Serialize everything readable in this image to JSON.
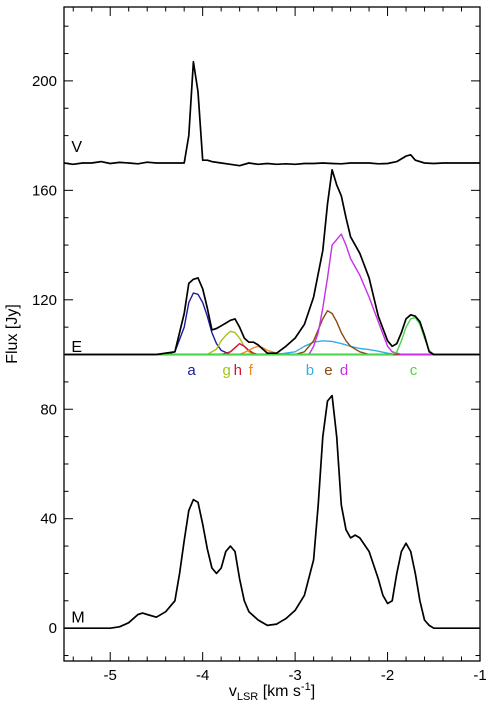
{
  "chart_data": {
    "type": "line",
    "xlabel_main": "v",
    "xlabel_sub": "LSR",
    "xlabel_units_pre": " [km s",
    "xlabel_units_sup": "-1",
    "xlabel_units_post": "]",
    "ylabel": "Flux [Jy]",
    "xlim": [
      -5.5,
      -1.0
    ],
    "ylim": [
      -12,
      227
    ],
    "x_ticks": [
      -5,
      -4,
      -3,
      -2,
      -1
    ],
    "x_tick_labels": [
      "-5",
      "-4",
      "-3",
      "-2",
      "-1"
    ],
    "y_ticks": [
      0,
      40,
      80,
      120,
      160,
      200
    ],
    "y_tick_labels": [
      "0",
      "40",
      "80",
      "120",
      "160",
      "200"
    ],
    "panels": [
      {
        "label": "V",
        "label_x": -5.42,
        "label_y": 174
      },
      {
        "label": "E",
        "label_x": -5.42,
        "label_y": 101
      },
      {
        "label": "M",
        "label_x": -5.42,
        "label_y": 2
      }
    ],
    "series": [
      {
        "color": "#000000",
        "x": [
          -5.5,
          -5.4,
          -5.3,
          -5.2,
          -5.1,
          -5.0,
          -4.9,
          -4.8,
          -4.7,
          -4.6,
          -4.5,
          -4.4,
          -4.3,
          -4.2,
          -4.15,
          -4.1,
          -4.05,
          -4.0,
          -3.95,
          -3.9,
          -3.8,
          -3.7,
          -3.6,
          -3.5,
          -3.4,
          -3.3,
          -3.2,
          -3.1,
          -3.0,
          -2.9,
          -2.8,
          -2.7,
          -2.6,
          -2.5,
          -2.4,
          -2.3,
          -2.2,
          -2.1,
          -2.0,
          -1.9,
          -1.8,
          -1.75,
          -1.7,
          -1.6,
          -1.5,
          -1.4,
          -1.3,
          -1.2,
          -1.1,
          -1.0
        ],
        "y": [
          170,
          169.5,
          170,
          170,
          170.5,
          169.8,
          170.2,
          170,
          169.7,
          170.3,
          170,
          170,
          170,
          170,
          180,
          207,
          196,
          171,
          171,
          170.5,
          170,
          169.5,
          169,
          170,
          169.5,
          169.8,
          169.5,
          169.7,
          169.5,
          169.8,
          169.8,
          170,
          169.8,
          169.7,
          170,
          170,
          170,
          169.7,
          169.8,
          170.5,
          172.5,
          173,
          171,
          170,
          169.8,
          170,
          170,
          170,
          170,
          170
        ]
      },
      {
        "color": "#000000",
        "x": [
          -5.5,
          -5.0,
          -4.5,
          -4.3,
          -4.2,
          -4.15,
          -4.1,
          -4.05,
          -4.0,
          -3.95,
          -3.9,
          -3.85,
          -3.8,
          -3.75,
          -3.7,
          -3.65,
          -3.6,
          -3.55,
          -3.5,
          -3.45,
          -3.4,
          -3.35,
          -3.3,
          -3.2,
          -3.1,
          -3.0,
          -2.9,
          -2.8,
          -2.7,
          -2.65,
          -2.6,
          -2.55,
          -2.5,
          -2.45,
          -2.4,
          -2.35,
          -2.3,
          -2.2,
          -2.1,
          -2.0,
          -1.95,
          -1.9,
          -1.85,
          -1.8,
          -1.75,
          -1.7,
          -1.65,
          -1.6,
          -1.55,
          -1.5,
          -1.4,
          -1.0
        ],
        "y": [
          100,
          100,
          100,
          101,
          115,
          126,
          127.5,
          128,
          124,
          117,
          109,
          109.5,
          110.5,
          111.5,
          112.5,
          113,
          110,
          106,
          104.5,
          104.5,
          103.5,
          102,
          100.5,
          100.5,
          103,
          106,
          111,
          121,
          138,
          155,
          167.5,
          162,
          158,
          150,
          143,
          140,
          137,
          128,
          114,
          105,
          103,
          104,
          108,
          113,
          114.5,
          114,
          112,
          107,
          101,
          100,
          100,
          100
        ]
      },
      {
        "color": "#1a1a9a",
        "x": [
          -5.5,
          -4.4,
          -4.3,
          -4.2,
          -4.15,
          -4.1,
          -4.05,
          -4.0,
          -3.95,
          -3.9,
          -3.85,
          -3.8,
          -3.7,
          -3.6,
          -1.0
        ],
        "y": [
          100,
          100,
          101,
          110,
          119,
          122.5,
          122,
          119,
          114,
          108,
          104,
          101.5,
          100,
          100,
          100
        ]
      },
      {
        "color": "#a6c318",
        "x": [
          -5.5,
          -3.95,
          -3.85,
          -3.8,
          -3.75,
          -3.7,
          -3.65,
          -3.6,
          -3.55,
          -3.5,
          -3.45,
          -1.0
        ],
        "y": [
          100,
          100,
          102,
          105,
          107,
          108.5,
          108,
          106,
          103,
          101,
          100,
          100
        ]
      },
      {
        "color": "#d6102f",
        "x": [
          -5.5,
          -3.8,
          -3.7,
          -3.65,
          -3.6,
          -3.55,
          -3.5,
          -3.45,
          -3.4,
          -1.0
        ],
        "y": [
          100,
          100,
          101,
          102.5,
          104,
          103,
          101.5,
          100.5,
          100,
          100
        ]
      },
      {
        "color": "#ee8a22",
        "x": [
          -5.5,
          -3.6,
          -3.5,
          -3.45,
          -3.4,
          -3.35,
          -3.3,
          -3.2,
          -3.1,
          -1.0
        ],
        "y": [
          100,
          100,
          101.5,
          102.5,
          103,
          102.5,
          101.5,
          100.5,
          100,
          100
        ]
      },
      {
        "color": "#33aee8",
        "x": [
          -5.5,
          -3.2,
          -3.0,
          -2.9,
          -2.8,
          -2.7,
          -2.6,
          -2.5,
          -2.4,
          -2.3,
          -2.2,
          -2.1,
          -2.0,
          -1.9,
          -1.0
        ],
        "y": [
          100,
          100,
          101,
          103,
          104.5,
          105,
          104.8,
          104,
          103,
          102.2,
          101.8,
          101.2,
          100.5,
          100,
          100
        ]
      },
      {
        "color": "#8a4a12",
        "x": [
          -5.5,
          -3.0,
          -2.9,
          -2.8,
          -2.75,
          -2.7,
          -2.65,
          -2.6,
          -2.55,
          -2.5,
          -2.45,
          -2.4,
          -2.3,
          -2.2,
          -1.0
        ],
        "y": [
          100,
          100,
          101,
          105,
          109,
          113,
          116,
          115,
          112,
          108,
          105,
          103,
          101,
          100,
          100
        ]
      },
      {
        "color": "#c530e8",
        "x": [
          -5.5,
          -2.85,
          -2.8,
          -2.75,
          -2.7,
          -2.65,
          -2.6,
          -2.55,
          -2.5,
          -2.45,
          -2.4,
          -2.35,
          -2.3,
          -2.2,
          -2.1,
          -2.0,
          -1.95,
          -1.9,
          -1.85,
          -1.0
        ],
        "y": [
          100,
          100,
          103,
          108,
          117,
          128,
          140,
          142,
          144,
          140,
          135,
          132,
          129,
          121,
          112,
          103,
          101,
          100.5,
          100,
          100
        ]
      },
      {
        "color": "#4ad84a",
        "x": [
          -5.5,
          -1.95,
          -1.9,
          -1.85,
          -1.8,
          -1.75,
          -1.7,
          -1.65,
          -1.6,
          -1.55,
          -1.5,
          -1.0
        ],
        "y": [
          100,
          100,
          101,
          105,
          110,
          113,
          113.5,
          111,
          106,
          101.5,
          100,
          100
        ]
      },
      {
        "color": "#000000",
        "x": [
          -5.5,
          -5.0,
          -4.9,
          -4.8,
          -4.7,
          -4.65,
          -4.6,
          -4.5,
          -4.4,
          -4.3,
          -4.25,
          -4.2,
          -4.15,
          -4.1,
          -4.05,
          -4.0,
          -3.95,
          -3.9,
          -3.85,
          -3.8,
          -3.75,
          -3.7,
          -3.65,
          -3.6,
          -3.55,
          -3.5,
          -3.4,
          -3.3,
          -3.2,
          -3.15,
          -3.1,
          -3.0,
          -2.9,
          -2.8,
          -2.75,
          -2.7,
          -2.65,
          -2.6,
          -2.55,
          -2.5,
          -2.45,
          -2.4,
          -2.35,
          -2.3,
          -2.2,
          -2.1,
          -2.05,
          -2.0,
          -1.95,
          -1.9,
          -1.85,
          -1.8,
          -1.75,
          -1.7,
          -1.65,
          -1.6,
          -1.55,
          -1.5,
          -1.4,
          -1.3,
          -1.2,
          -1.0
        ],
        "y": [
          0,
          0,
          0.5,
          2,
          5,
          5.5,
          5,
          4,
          6,
          10,
          20,
          32,
          43,
          47,
          46,
          38,
          29,
          22,
          20,
          22,
          28,
          30,
          28,
          18,
          10,
          6,
          3,
          1,
          1.5,
          2.5,
          3.5,
          6.5,
          12,
          25,
          45,
          70,
          83,
          85,
          70,
          45,
          36,
          33,
          34,
          33,
          28,
          18,
          12,
          9,
          10,
          20,
          28,
          31,
          28,
          20,
          10,
          3,
          1,
          0,
          0,
          0,
          0,
          0
        ]
      }
    ],
    "component_labels": [
      {
        "text": "a",
        "color": "#1a1a9a",
        "x": -4.12
      },
      {
        "text": "g",
        "color": "#a6c318",
        "x": -3.74
      },
      {
        "text": "h",
        "color": "#d6102f",
        "x": -3.62
      },
      {
        "text": "f",
        "color": "#ee8a22",
        "x": -3.48
      },
      {
        "text": "b",
        "color": "#33aee8",
        "x": -2.84
      },
      {
        "text": "e",
        "color": "#8a4a12",
        "x": -2.64
      },
      {
        "text": "d",
        "color": "#c530e8",
        "x": -2.47
      },
      {
        "text": "c",
        "color": "#4ad84a",
        "x": -1.72
      }
    ],
    "component_label_y": 95.5
  }
}
